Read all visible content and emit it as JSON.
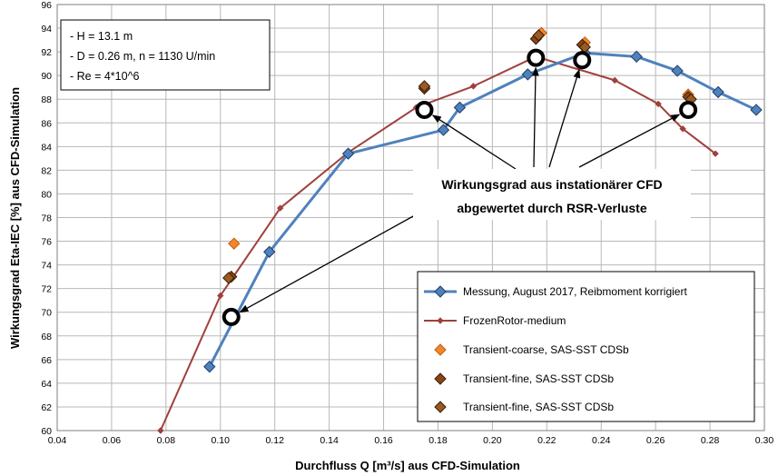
{
  "colors": {
    "measurement": "#4f81bd",
    "measurement_edge": "#1f3f66",
    "frozen": "#a0403c",
    "coarse": "#f0882a",
    "fine": "#8b4513",
    "grid": "#b8b8b8",
    "unsteady_marker": "#000000"
  },
  "info_box": {
    "line1": "- H = 13.1 m",
    "line2": "- D = 0.26 m, n = 1130 U/min",
    "line3": "- Re = 4*10^6"
  },
  "callout": {
    "line1": "Wirkungsgrad aus instationärer CFD",
    "line2": "abgewertet durch RSR-Verluste"
  },
  "chart_data": {
    "type": "line",
    "xlabel": "Durchfluss Q [m³/s] aus CFD-Simulation",
    "ylabel": "Wirkungsgrad Eta-IEC [%] aus CFD-Simulation",
    "xlim": [
      0.04,
      0.3
    ],
    "ylim": [
      60,
      96
    ],
    "x_ticks": [
      "0.04",
      "0.06",
      "0.08",
      "0.10",
      "0.12",
      "0.14",
      "0.16",
      "0.18",
      "0.20",
      "0.22",
      "0.24",
      "0.26",
      "0.28",
      "0.30"
    ],
    "y_ticks": [
      "60",
      "62",
      "64",
      "66",
      "68",
      "70",
      "72",
      "74",
      "76",
      "78",
      "80",
      "82",
      "84",
      "86",
      "88",
      "90",
      "92",
      "94",
      "96"
    ],
    "grid": true,
    "legend_position": "bottom-right",
    "series": [
      {
        "name": "Messung, August 2017, Reibmoment korrigiert",
        "style": "line-diamond",
        "x": [
          0.096,
          0.118,
          0.147,
          0.182,
          0.188,
          0.213,
          0.234,
          0.253,
          0.268,
          0.283,
          0.297
        ],
        "y": [
          65.4,
          75.1,
          83.4,
          85.4,
          87.3,
          90.1,
          91.9,
          91.6,
          90.4,
          88.6,
          87.1
        ]
      },
      {
        "name": "FrozenRotor-medium",
        "style": "line-small-diamond",
        "x": [
          0.078,
          0.1,
          0.122,
          0.147,
          0.172,
          0.193,
          0.216,
          0.245,
          0.261,
          0.27,
          0.282
        ],
        "y": [
          60.0,
          71.4,
          78.8,
          83.5,
          87.3,
          89.1,
          91.6,
          89.6,
          87.6,
          85.5,
          83.4
        ]
      },
      {
        "name": "Transient-coarse, SAS-SST CDSb",
        "style": "marker",
        "x": [
          0.105,
          0.175,
          0.218,
          0.234,
          0.272
        ],
        "y": [
          75.8,
          89.0,
          93.6,
          92.8,
          88.4
        ]
      },
      {
        "name": "Transient-fine, SAS-SST CDSb",
        "style": "marker",
        "x": [
          0.104,
          0.175,
          0.216,
          0.233,
          0.272
        ],
        "y": [
          73.0,
          88.9,
          93.1,
          92.6,
          88.2
        ]
      },
      {
        "name": "Transient-fine, SAS-SST CDSb",
        "style": "marker",
        "x": [
          0.103,
          0.175,
          0.217,
          0.234,
          0.273
        ],
        "y": [
          72.9,
          89.1,
          93.4,
          92.4,
          88.0
        ]
      },
      {
        "name": "",
        "style": "open-circle",
        "x": [
          0.104,
          0.175,
          0.216,
          0.233,
          0.272
        ],
        "y": [
          69.6,
          87.1,
          91.5,
          91.3,
          87.1
        ]
      }
    ]
  }
}
